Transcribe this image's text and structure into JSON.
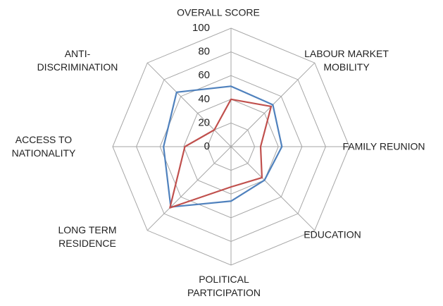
{
  "chart_data": {
    "type": "radar",
    "categories": [
      "OVERALL SCORE",
      "LABOUR MARKET MOBILITY",
      "FAMILY REUNION",
      "EDUCATION",
      "POLITICAL PARTICIPATION",
      "LONG TERM RESIDENCE",
      "ACCESS TO NATIONALITY",
      "ANTI-DISCRIMINATION"
    ],
    "series": [
      {
        "color": "#4f81bd",
        "values": [
          51,
          50,
          43,
          40,
          46,
          72,
          57,
          65
        ]
      },
      {
        "color": "#c0504d",
        "values": [
          40,
          48,
          25,
          37,
          34,
          73,
          39,
          20
        ]
      }
    ],
    "ylim": [
      0,
      100
    ],
    "yticks": [
      0,
      20,
      40,
      60,
      80,
      100
    ],
    "grid": true
  }
}
